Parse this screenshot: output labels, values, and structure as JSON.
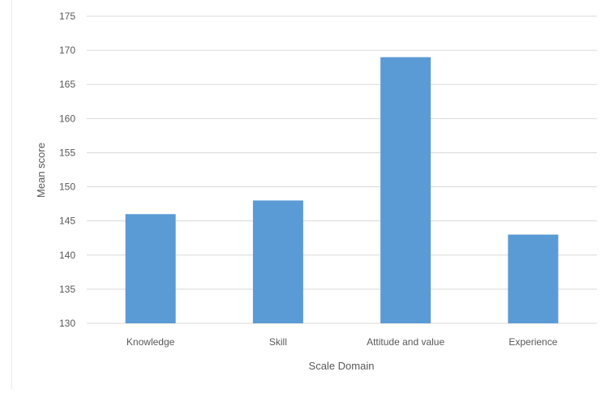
{
  "chart_data": {
    "type": "bar",
    "title": "",
    "categories": [
      "Knowledge",
      "Skill",
      "Attitude and value",
      "Experience"
    ],
    "series": [
      {
        "values": [
          146,
          148,
          169,
          143
        ]
      }
    ],
    "xlabel": "Scale Domain",
    "ylabel": "Mean score",
    "ylim": [
      130,
      175
    ],
    "yticks": [
      130,
      135,
      140,
      145,
      150,
      155,
      160,
      165,
      170,
      175
    ],
    "grid": true,
    "legend": "none",
    "colors": {
      "bar": "#5b9bd5",
      "grid": "#d9d9d9",
      "text": "#595959"
    }
  }
}
